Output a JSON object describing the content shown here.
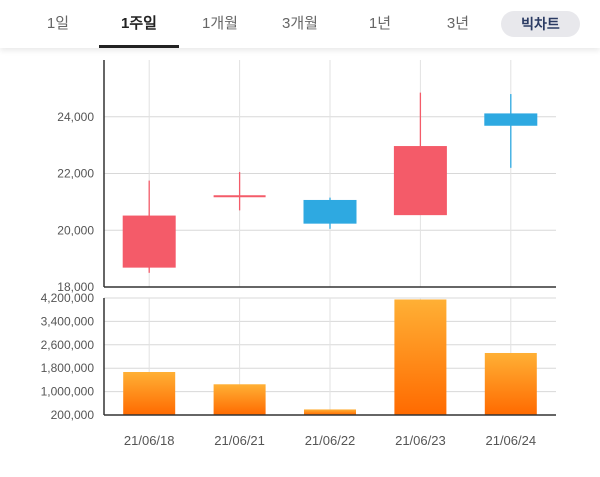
{
  "tabs": [
    {
      "label": "1일",
      "active": false
    },
    {
      "label": "1주일",
      "active": true
    },
    {
      "label": "1개월",
      "active": false
    },
    {
      "label": "3개월",
      "active": false
    },
    {
      "label": "1년",
      "active": false
    },
    {
      "label": "3년",
      "active": false
    }
  ],
  "big_chart_label": "빅차트",
  "chart_data": [
    {
      "type": "candlestick",
      "categories": [
        "21/06/18",
        "21/06/21",
        "21/06/22",
        "21/06/23",
        "21/06/24"
      ],
      "series": [
        {
          "open": 18700,
          "close": 20500,
          "high": 21750,
          "low": 18500,
          "direction": "up"
        },
        {
          "open": 21200,
          "close": 21200,
          "high": 22050,
          "low": 20700,
          "direction": "up"
        },
        {
          "open": 21050,
          "close": 20250,
          "high": 21150,
          "low": 20050,
          "direction": "down"
        },
        {
          "open": 20550,
          "close": 22950,
          "high": 24850,
          "low": 20550,
          "direction": "up"
        },
        {
          "open": 24100,
          "close": 23700,
          "high": 24800,
          "low": 22200,
          "direction": "down"
        }
      ],
      "yticks": [
        "24,000",
        "22,000",
        "20,000",
        "18,000"
      ],
      "yticks_values": [
        24000,
        22000,
        20000,
        18000
      ],
      "ylim": [
        18000,
        26000
      ],
      "colors": {
        "up": "#f45b69",
        "down": "#2ea9e1"
      }
    },
    {
      "type": "bar",
      "categories": [
        "21/06/18",
        "21/06/21",
        "21/06/22",
        "21/06/23",
        "21/06/24"
      ],
      "values": [
        1670000,
        1250000,
        390000,
        4150000,
        2320000
      ],
      "yticks": [
        "4,200,000",
        "3,400,000",
        "2,600,000",
        "1,800,000",
        "1,000,000",
        "200,000"
      ],
      "yticks_values": [
        4200000,
        3400000,
        2600000,
        1800000,
        1000000,
        200000
      ],
      "ylim": [
        200000,
        4200000
      ],
      "colors": {
        "top": "#ffb035",
        "bottom": "#ff6a00"
      }
    }
  ]
}
